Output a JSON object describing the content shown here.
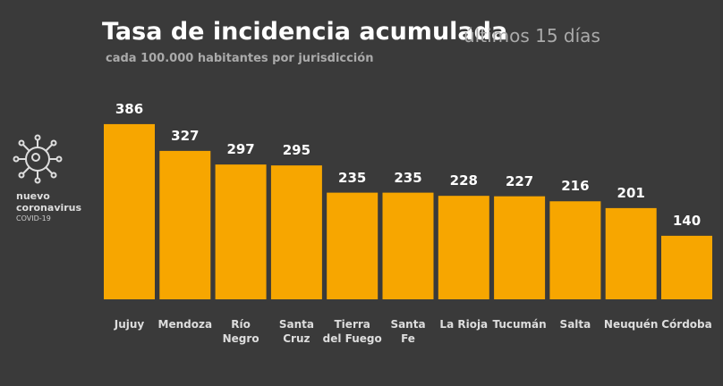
{
  "chart_data": {
    "type": "bar",
    "title": "Tasa de incidencia acumulada",
    "title_suffix": "últimos 15 días",
    "subtitle": "cada 100.000 habitantes por jurisdicción",
    "badge": [
      "nuevo",
      "coronavirus",
      "COVID-19"
    ],
    "categories": [
      "Jujuy",
      "Mendoza",
      "Río\nNegro",
      "Santa\nCruz",
      "Tierra\ndel Fuego",
      "Santa\nFe",
      "La Rioja",
      "Tucumán",
      "Salta",
      "Neuquén",
      "Córdoba"
    ],
    "values": [
      386,
      327,
      297,
      295,
      235,
      235,
      228,
      227,
      216,
      201,
      140
    ],
    "color": "#f7a600"
  }
}
